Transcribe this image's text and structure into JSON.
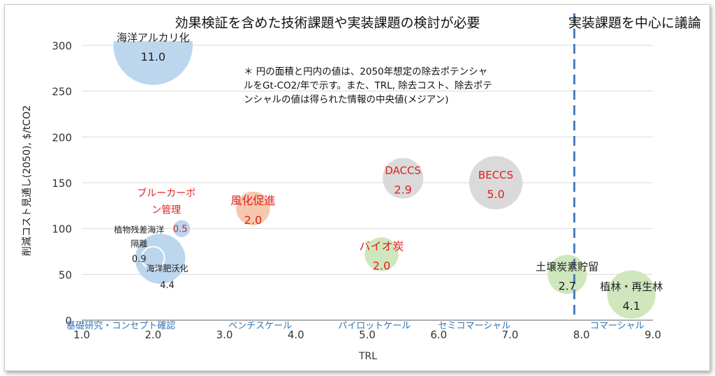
{
  "chart_data": {
    "type": "bubble",
    "header_left": "効果検証を含めた技術課題や実装課題の検討が必要",
    "header_right": "実装課題を中心に議論",
    "note_lines": [
      "＊ 円の面積と円内の値は、2050年想定の除去ポテンシャ",
      "ルをGt-CO2/年で示す。また、TRL, 除去コスト、除去ポテ",
      "ンシャルの値は得られた情報の中央値(メジアン)"
    ],
    "xlabel": "TRL",
    "ylabel": "削減コスト見通し(2050), $/tCO2",
    "xlim": [
      1.0,
      9.0
    ],
    "ylim": [
      0,
      300
    ],
    "x_ticks": [
      "1.0",
      "2.0",
      "3.0",
      "4.0",
      "5.0",
      "6.0",
      "7.0",
      "8.0",
      "9.0"
    ],
    "y_ticks": [
      "0",
      "50",
      "100",
      "150",
      "200",
      "250",
      "300"
    ],
    "stage_labels": [
      {
        "label": "基礎研究・コンセプト確認",
        "x": 1.55
      },
      {
        "label": "ベンチスケール",
        "x": 3.5
      },
      {
        "label": "パイロットケール",
        "x": 5.1
      },
      {
        "label": "セミコマーシャル",
        "x": 6.5
      },
      {
        "label": "コマーシャル",
        "x": 8.5
      }
    ],
    "divider_x": 7.9,
    "grid": "horizontal",
    "bubbles": [
      {
        "name": "海洋アルカリ化",
        "trl": 2.0,
        "cost": 300,
        "value": 11.0,
        "value_label": "11.0",
        "color": "#bcd6ee",
        "text_color": "#222222",
        "label_pos": "inside"
      },
      {
        "name": "海洋肥沃化",
        "trl": 2.1,
        "cost": 67,
        "value": 4.4,
        "value_label": "4.4",
        "color": "#bcd6ee",
        "text_color": "#222222",
        "label_pos": "below"
      },
      {
        "name": "植物残差海洋隔離",
        "trl": 2.0,
        "cost": 68,
        "value": 0.9,
        "value_label": "0.9",
        "color": "#bcd6ee",
        "text_color": "#222222",
        "label_pos": "left"
      },
      {
        "name": "ブルーカーボン管理",
        "trl": 2.4,
        "cost": 100,
        "value": 0.5,
        "value_label": "0.5",
        "color": "#bcd6ee",
        "text_color": "#e02020",
        "label_pos": "above-left"
      },
      {
        "name": "風化促進",
        "trl": 3.4,
        "cost": 122,
        "value": 2.0,
        "value_label": "2.0",
        "color": "#f6c8ae",
        "text_color": "#e02020",
        "label_pos": "inside"
      },
      {
        "name": "DACCS",
        "trl": 5.5,
        "cost": 155,
        "value": 2.9,
        "value_label": "2.9",
        "color": "#dadada",
        "text_color": "#e02020",
        "label_pos": "inside"
      },
      {
        "name": "BECCS",
        "trl": 6.8,
        "cost": 150,
        "value": 5.0,
        "value_label": "5.0",
        "color": "#dadada",
        "text_color": "#e02020",
        "label_pos": "inside"
      },
      {
        "name": "バイオ炭",
        "trl": 5.2,
        "cost": 72,
        "value": 2.0,
        "value_label": "2.0",
        "color": "#cfe7bd",
        "text_color": "#e02020",
        "label_pos": "inside"
      },
      {
        "name": "土壌炭素貯留",
        "trl": 7.8,
        "cost": 50,
        "value": 2.7,
        "value_label": "2.7",
        "color": "#cfe7bd",
        "text_color": "#222222",
        "label_pos": "inside"
      },
      {
        "name": "植林・再生林",
        "trl": 8.7,
        "cost": 28,
        "value": 4.1,
        "value_label": "4.1",
        "color": "#cfe7bd",
        "text_color": "#222222",
        "label_pos": "inside"
      }
    ]
  }
}
